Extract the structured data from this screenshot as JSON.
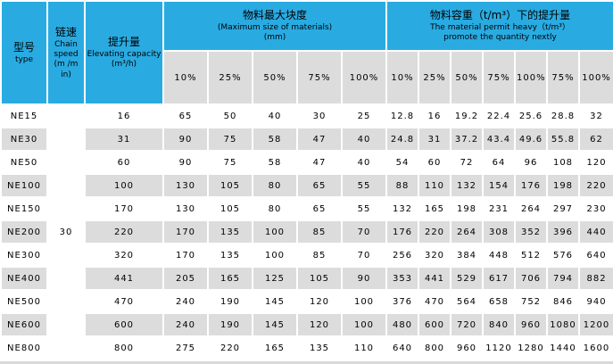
{
  "colors": {
    "header_blue": "#29abe2",
    "cell_gray": "#dcdcdc",
    "bottom_strip_gray": "#d9d9d9"
  },
  "table": {
    "columns": {
      "type": {
        "zh": "型号",
        "en": "type"
      },
      "chain_speed": {
        "zh": "链速",
        "en": "Chain speed",
        "unit": "(m /m in)"
      },
      "capacity": {
        "zh": "提升量",
        "en": "Elevating capacity",
        "unit": "(m³/h)"
      }
    },
    "groups": [
      {
        "zh": "物料最大块度",
        "en": "(Maximum size of materials)",
        "unit": "(mm)",
        "subheaders": [
          "10%",
          "25%",
          "50%",
          "75%",
          "100%"
        ]
      },
      {
        "zh": "物料容重（t/m³）下的提升量",
        "en_line1": "The material permit heavy（t/m³）",
        "en_line2": "promote the quantity nextly",
        "subheaders": [
          "10%",
          "25%",
          "50%",
          "75%",
          "100%",
          "75%",
          "100%"
        ]
      }
    ],
    "chain_speed_value": "30",
    "rows": [
      {
        "model": "NE15",
        "capacity": "16",
        "max_size": [
          "65",
          "50",
          "40",
          "30",
          "25"
        ],
        "lift": [
          "12.8",
          "16",
          "19.2",
          "22.4",
          "25.6",
          "28.8",
          "32"
        ]
      },
      {
        "model": "NE30",
        "capacity": "31",
        "max_size": [
          "90",
          "75",
          "58",
          "47",
          "40"
        ],
        "lift": [
          "24.8",
          "31",
          "37.2",
          "43.4",
          "49.6",
          "55.8",
          "62"
        ]
      },
      {
        "model": "NE50",
        "capacity": "60",
        "max_size": [
          "90",
          "75",
          "58",
          "47",
          "40"
        ],
        "lift": [
          "54",
          "60",
          "72",
          "64",
          "96",
          "108",
          "120"
        ]
      },
      {
        "model": "NE100",
        "capacity": "100",
        "max_size": [
          "130",
          "105",
          "80",
          "65",
          "55"
        ],
        "lift": [
          "88",
          "110",
          "132",
          "154",
          "176",
          "198",
          "220"
        ]
      },
      {
        "model": "NE150",
        "capacity": "170",
        "max_size": [
          "130",
          "105",
          "80",
          "65",
          "55"
        ],
        "lift": [
          "132",
          "165",
          "198",
          "231",
          "264",
          "297",
          "230"
        ]
      },
      {
        "model": "NE200",
        "capacity": "220",
        "max_size": [
          "170",
          "135",
          "100",
          "85",
          "70"
        ],
        "lift": [
          "176",
          "220",
          "264",
          "308",
          "352",
          "396",
          "440"
        ]
      },
      {
        "model": "NE300",
        "capacity": "320",
        "max_size": [
          "170",
          "135",
          "100",
          "85",
          "70"
        ],
        "lift": [
          "256",
          "320",
          "384",
          "448",
          "512",
          "576",
          "640"
        ]
      },
      {
        "model": "NE400",
        "capacity": "441",
        "max_size": [
          "205",
          "165",
          "125",
          "105",
          "90"
        ],
        "lift": [
          "353",
          "441",
          "529",
          "617",
          "706",
          "794",
          "882"
        ]
      },
      {
        "model": "NE500",
        "capacity": "470",
        "max_size": [
          "240",
          "190",
          "145",
          "120",
          "100"
        ],
        "lift": [
          "376",
          "470",
          "564",
          "658",
          "752",
          "846",
          "940"
        ]
      },
      {
        "model": "NE600",
        "capacity": "600",
        "max_size": [
          "240",
          "190",
          "145",
          "120",
          "100"
        ],
        "lift": [
          "480",
          "600",
          "720",
          "840",
          "960",
          "1080",
          "1200"
        ]
      },
      {
        "model": "NE800",
        "capacity": "800",
        "max_size": [
          "275",
          "220",
          "165",
          "135",
          "110"
        ],
        "lift": [
          "640",
          "800",
          "960",
          "1120",
          "1280",
          "1440",
          "1600"
        ]
      }
    ]
  }
}
